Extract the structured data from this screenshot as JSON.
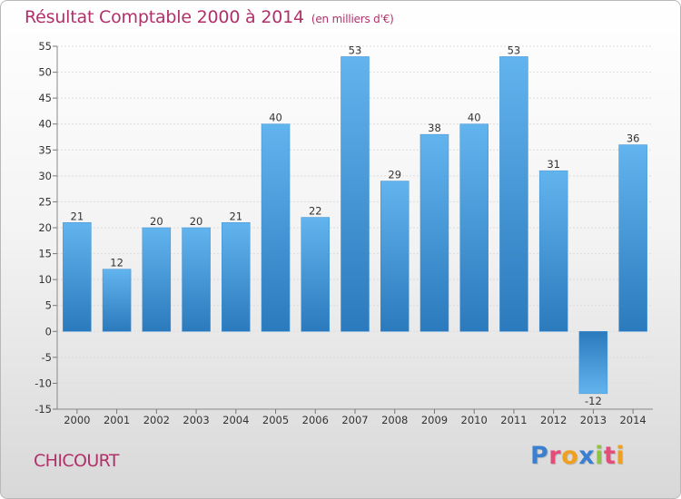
{
  "header": {
    "title": "Résultat Comptable 2000 à 2014",
    "unit": "(en milliers d'€)"
  },
  "footer": {
    "place": "CHICOURT",
    "logo_letters": [
      "P",
      "r",
      "o",
      "x",
      "i",
      "t",
      "i"
    ],
    "logo_colors": [
      "#3a7fd0",
      "#e24d7a",
      "#f0a020",
      "#3a7fd0",
      "#8cc63f",
      "#e24d7a",
      "#f0a020"
    ]
  },
  "chart_data": {
    "type": "bar",
    "title": "Résultat Comptable 2000 à 2014",
    "subtitle": "(en milliers d'€)",
    "categories": [
      "2000",
      "2001",
      "2002",
      "2003",
      "2004",
      "2005",
      "2006",
      "2007",
      "2008",
      "2009",
      "2010",
      "2011",
      "2012",
      "2013",
      "2014"
    ],
    "values": [
      21,
      12,
      20,
      20,
      21,
      40,
      22,
      53,
      29,
      38,
      40,
      53,
      31,
      -12,
      36
    ],
    "labels": [
      "21",
      "12",
      "20",
      "20",
      "21",
      "40",
      "22",
      "53",
      "29",
      "38",
      "40",
      "53",
      "31",
      "-12",
      "36"
    ],
    "yticks": [
      -15,
      -10,
      -5,
      0,
      5,
      10,
      15,
      20,
      25,
      30,
      35,
      40,
      45,
      50,
      55
    ],
    "ytick_labels": [
      "-15",
      "-10",
      "-5",
      "0",
      "5",
      "10",
      "15",
      "20",
      "25",
      "30",
      "35",
      "40",
      "45",
      "50",
      "55"
    ],
    "ylim": [
      -15,
      55
    ],
    "xlabel": "",
    "ylabel": "",
    "grid": true,
    "bar_color": "#3d93d6",
    "bar_color_light": "#5fb0ea",
    "bar_color_dark": "#2d7cbf"
  }
}
